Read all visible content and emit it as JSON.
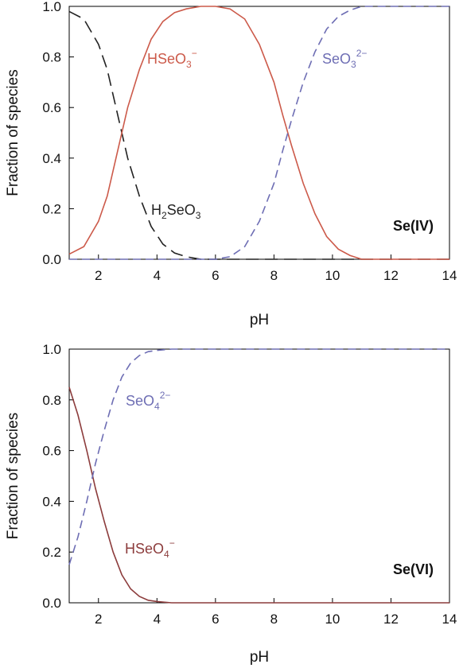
{
  "chart_data": [
    {
      "type": "line",
      "panel_label": "Se(IV)",
      "xlabel": "pH",
      "ylabel": "Fraction of species",
      "xlim": [
        1,
        14
      ],
      "ylim": [
        0,
        1.0
      ],
      "xticks": [
        "2",
        "4",
        "6",
        "8",
        "10",
        "12",
        "14"
      ],
      "yticks": [
        "0.0",
        "0.2",
        "0.4",
        "0.6",
        "0.8",
        "1.0"
      ],
      "series": [
        {
          "species": "H2SeO3",
          "label": {
            "base": "H",
            "sub1": "2",
            "mid": "SeO",
            "sub2": "3",
            "sup": ""
          },
          "color": "#222222",
          "dash": "long-dash",
          "x": [
            1.0,
            1.5,
            2.0,
            2.3,
            2.6,
            3.0,
            3.4,
            3.8,
            4.2,
            4.6,
            5.0,
            5.5,
            6.0,
            7.0,
            8.0,
            10.0,
            14.0
          ],
          "y": [
            0.98,
            0.95,
            0.85,
            0.75,
            0.6,
            0.4,
            0.25,
            0.13,
            0.06,
            0.025,
            0.01,
            0.0,
            0.0,
            0.0,
            0.0,
            0.0,
            0.0
          ]
        },
        {
          "species": "HSeO3-",
          "label": {
            "base": "",
            "sub1": "",
            "mid": "HSeO",
            "sub2": "3",
            "sup": "−"
          },
          "color": "#cc5a4a",
          "dash": "solid",
          "x": [
            1.0,
            1.5,
            2.0,
            2.3,
            2.6,
            3.0,
            3.4,
            3.8,
            4.2,
            4.6,
            5.0,
            5.5,
            6.0,
            6.5,
            7.0,
            7.5,
            8.0,
            8.3,
            8.6,
            9.0,
            9.4,
            9.8,
            10.2,
            10.6,
            11.0,
            12.0,
            14.0
          ],
          "y": [
            0.02,
            0.05,
            0.15,
            0.25,
            0.4,
            0.6,
            0.75,
            0.87,
            0.94,
            0.975,
            0.99,
            1.0,
            1.0,
            0.99,
            0.95,
            0.85,
            0.7,
            0.57,
            0.45,
            0.3,
            0.18,
            0.09,
            0.04,
            0.015,
            0.0,
            0.0,
            0.0
          ]
        },
        {
          "species": "SeO3 2-",
          "label": {
            "base": "",
            "sub1": "",
            "mid": "SeO",
            "sub2": "3",
            "sup": "2−"
          },
          "color": "#6e6eb4",
          "dash": "dash",
          "x": [
            1.0,
            4.0,
            6.0,
            6.5,
            7.0,
            7.5,
            8.0,
            8.3,
            8.6,
            9.0,
            9.4,
            9.8,
            10.2,
            10.6,
            11.0,
            12.0,
            14.0
          ],
          "y": [
            0.0,
            0.0,
            0.0,
            0.01,
            0.05,
            0.15,
            0.3,
            0.43,
            0.55,
            0.7,
            0.82,
            0.91,
            0.96,
            0.985,
            1.0,
            1.0,
            1.0
          ]
        }
      ]
    },
    {
      "type": "line",
      "panel_label": "Se(VI)",
      "xlabel": "pH",
      "ylabel": "Fraction of species",
      "xlim": [
        1,
        14
      ],
      "ylim": [
        0,
        1.0
      ],
      "xticks": [
        "2",
        "4",
        "6",
        "8",
        "10",
        "12",
        "14"
      ],
      "yticks": [
        "0.0",
        "0.2",
        "0.4",
        "0.6",
        "0.8",
        "1.0"
      ],
      "series": [
        {
          "species": "HSeO4-",
          "label": {
            "base": "",
            "sub1": "",
            "mid": "HSeO",
            "sub2": "4",
            "sup": "−"
          },
          "color": "#8c3c3c",
          "dash": "solid",
          "x": [
            1.0,
            1.3,
            1.6,
            1.9,
            2.2,
            2.5,
            2.8,
            3.1,
            3.4,
            3.7,
            4.0,
            4.5,
            5.0,
            6.0,
            14.0
          ],
          "y": [
            0.85,
            0.74,
            0.6,
            0.45,
            0.32,
            0.2,
            0.11,
            0.055,
            0.025,
            0.01,
            0.005,
            0.0,
            0.0,
            0.0,
            0.0
          ]
        },
        {
          "species": "SeO4 2-",
          "label": {
            "base": "",
            "sub1": "",
            "mid": "SeO",
            "sub2": "4",
            "sup": "2−"
          },
          "color": "#6e6eb4",
          "dash": "dash",
          "x": [
            1.0,
            1.3,
            1.6,
            1.9,
            2.2,
            2.5,
            2.8,
            3.1,
            3.4,
            3.7,
            4.0,
            4.5,
            5.0,
            6.0,
            14.0
          ],
          "y": [
            0.15,
            0.26,
            0.4,
            0.55,
            0.68,
            0.8,
            0.89,
            0.945,
            0.975,
            0.99,
            0.995,
            1.0,
            1.0,
            1.0,
            1.0
          ]
        }
      ]
    }
  ]
}
